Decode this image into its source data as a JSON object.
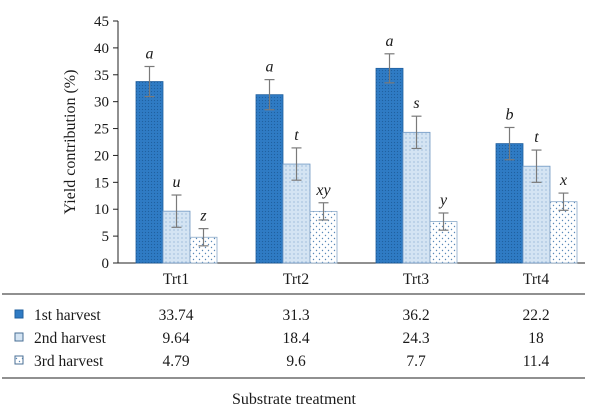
{
  "chart_data": {
    "type": "bar",
    "categories": [
      "Trt1",
      "Trt2",
      "Trt3",
      "Trt4"
    ],
    "series": [
      {
        "name": "1st harvest",
        "values": [
          33.74,
          31.3,
          36.2,
          22.2
        ],
        "errors": [
          2.8,
          2.8,
          2.7,
          3.0
        ],
        "letters": [
          "a",
          "a",
          "a",
          "b"
        ],
        "color": "#2f7bc4",
        "pattern": "dense-dots"
      },
      {
        "name": "2nd harvest",
        "values": [
          9.64,
          18.4,
          24.3,
          18
        ],
        "errors": [
          3.0,
          3.0,
          3.0,
          3.0
        ],
        "letters": [
          "u",
          "t",
          "s",
          "t"
        ],
        "color": "#c9ddf0",
        "pattern": "light-dots"
      },
      {
        "name": "3rd harvest",
        "values": [
          4.79,
          9.6,
          7.7,
          11.4
        ],
        "errors": [
          1.6,
          1.6,
          1.6,
          1.6
        ],
        "letters": [
          "z",
          "xy",
          "y",
          "x"
        ],
        "color": "#ffffff",
        "pattern": "sparse-dots"
      }
    ],
    "table_values": [
      [
        "33.74",
        "31.3",
        "36.2",
        "22.2"
      ],
      [
        "9.64",
        "18.4",
        "24.3",
        "18"
      ],
      [
        "4.79",
        "9.6",
        "7.7",
        "11.4"
      ]
    ],
    "ylabel": "Yield contribution (%)",
    "xlabel": "Substrate treatment",
    "ylim": [
      0,
      45
    ],
    "yticks": [
      0,
      5,
      10,
      15,
      20,
      25,
      30,
      35,
      40,
      45
    ],
    "grid": false,
    "legend": "data-table"
  }
}
